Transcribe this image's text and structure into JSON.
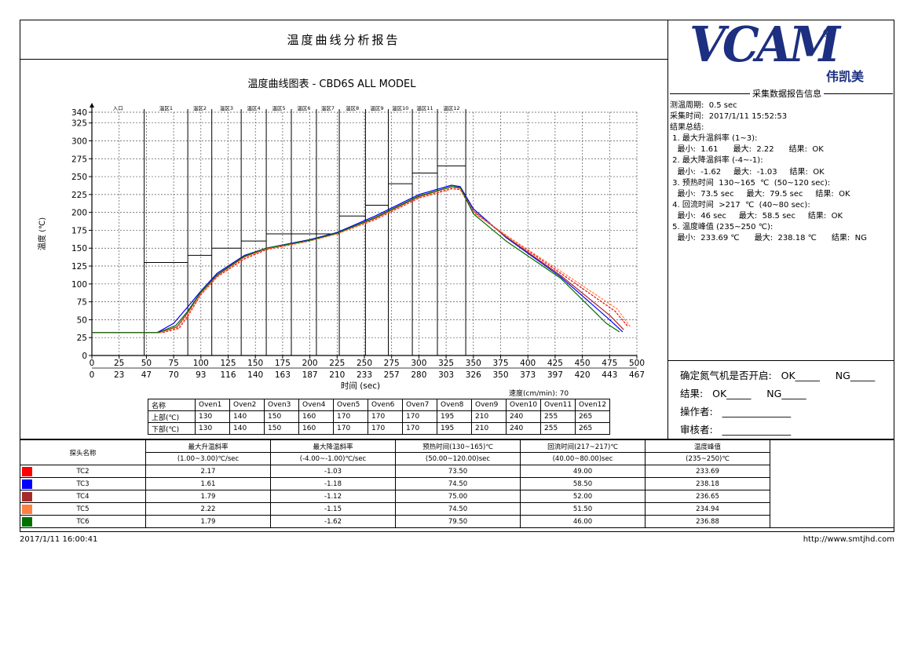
{
  "report_title": "温度曲线分析报告",
  "logo": {
    "text": "VCAM",
    "registered": "®",
    "cn": "伟凯美",
    "color": "#1c2f80"
  },
  "info_header": "采集数据报告信息",
  "info_lines": [
    "测温周期:  0.5 sec",
    "采集时间:  2017/1/11 15:52:53",
    "结果总结:",
    " 1. 最大升温斜率 (1~3):",
    "   最小:  1.61      最大:  2.22      结果:  OK",
    " 2. 最大降温斜率 (-4~-1):",
    "   最小:  -1.62     最大:  -1.03     结果:  OK",
    " 3. 预热时间  130~165  ℃  (50~120 sec):",
    "   最小:  73.5 sec     最大:  79.5 sec     结果:  OK",
    " 4. 回流时间  >217  ℃  (40~80 sec):",
    "   最小:  46 sec     最大:  58.5 sec     结果:  OK",
    " 5. 温度峰值 (235~250 ℃):",
    "   最小:  233.69 ℃      最大:  238.18 ℃      结果:  NG"
  ],
  "confirm": {
    "nitrogen": "确定氮气机是否开启:   OK_____     NG_____",
    "result": "结果:   OK_____     NG_____",
    "operator": "操作者:   ______________",
    "reviewer": "审核者:   ______________"
  },
  "chart_data": {
    "type": "line",
    "title": "温度曲线图表  - CBD6S ALL MODEL",
    "ylabel": "温度 (℃)",
    "xlabel": "时间 (sec)",
    "speed_label": "速度(cm/min):  70",
    "xlim": [
      0,
      500
    ],
    "ylim": [
      0,
      340
    ],
    "x_ticks": [
      0,
      25,
      50,
      75,
      100,
      125,
      150,
      175,
      200,
      225,
      250,
      275,
      300,
      325,
      350,
      375,
      400,
      425,
      450,
      475,
      500
    ],
    "x_ticks_secondary": [
      "0",
      "23",
      "47",
      "70",
      "93",
      "116",
      "140",
      "163",
      "187",
      "210",
      "233",
      "257",
      "280",
      "303",
      "326",
      "350",
      "373",
      "397",
      "420",
      "443",
      "467"
    ],
    "y_ticks": [
      0,
      25,
      50,
      75,
      100,
      125,
      150,
      175,
      200,
      225,
      250,
      275,
      300,
      325,
      340
    ],
    "zone_labels": [
      "入口",
      "温区1",
      "温区2",
      "温区3",
      "温区4",
      "温区5",
      "温区6",
      "温区7",
      "温区8",
      "温区9",
      "温区10",
      "温区11",
      "温区12"
    ],
    "zone_bounds": [
      0,
      48,
      88,
      110,
      137,
      160,
      183,
      206,
      227,
      251,
      272,
      294,
      317,
      343
    ],
    "zone_setpoints": [
      130,
      140,
      150,
      160,
      170,
      170,
      170,
      195,
      210,
      240,
      255,
      265
    ],
    "series": [
      {
        "name": "TC2",
        "color": "#ff0000",
        "x": [
          0,
          65,
          80,
          88,
          100,
          115,
          140,
          160,
          200,
          225,
          260,
          300,
          330,
          338,
          350,
          380,
          430,
          480,
          492
        ],
        "y": [
          32,
          32,
          38,
          55,
          85,
          110,
          135,
          148,
          160,
          170,
          190,
          220,
          233,
          232,
          200,
          168,
          115,
          62,
          40
        ]
      },
      {
        "name": "TC3",
        "color": "#0000ff",
        "x": [
          0,
          60,
          75,
          88,
          100,
          115,
          140,
          160,
          200,
          225,
          260,
          300,
          330,
          338,
          350,
          380,
          430,
          475,
          487
        ],
        "y": [
          32,
          32,
          45,
          68,
          90,
          115,
          140,
          150,
          162,
          172,
          195,
          225,
          238,
          236,
          205,
          165,
          110,
          50,
          33
        ]
      },
      {
        "name": "TC4",
        "color": "#a52a2a",
        "x": [
          0,
          62,
          78,
          88,
          100,
          115,
          140,
          160,
          200,
          225,
          260,
          300,
          330,
          338,
          350,
          380,
          430,
          476,
          488
        ],
        "y": [
          32,
          32,
          40,
          60,
          88,
          112,
          138,
          149,
          161,
          171,
          192,
          222,
          236,
          234,
          202,
          166,
          112,
          55,
          36
        ]
      },
      {
        "name": "TC5",
        "color": "#ff8040",
        "x": [
          0,
          63,
          79,
          88,
          100,
          115,
          140,
          160,
          200,
          225,
          260,
          300,
          330,
          338,
          350,
          380,
          430,
          482,
          494
        ],
        "y": [
          32,
          32,
          39,
          58,
          86,
          111,
          137,
          149,
          160,
          170,
          191,
          221,
          234,
          233,
          201,
          168,
          118,
          65,
          40
        ]
      },
      {
        "name": "TC6",
        "color": "#007000",
        "x": [
          0,
          61,
          77,
          88,
          100,
          115,
          140,
          160,
          200,
          225,
          260,
          300,
          330,
          338,
          350,
          380,
          430,
          472,
          484
        ],
        "y": [
          32,
          32,
          42,
          62,
          89,
          113,
          139,
          150,
          161,
          171,
          193,
          223,
          236,
          235,
          198,
          160,
          108,
          45,
          33
        ]
      }
    ]
  },
  "oven_table": {
    "header": [
      "名称",
      "Oven1",
      "Oven2",
      "Oven3",
      "Oven4",
      "Oven5",
      "Oven6",
      "Oven7",
      "Oven8",
      "Oven9",
      "Oven10",
      "Oven11",
      "Oven12"
    ],
    "rows": [
      [
        "上部(℃)",
        "130",
        "140",
        "150",
        "160",
        "170",
        "170",
        "170",
        "195",
        "210",
        "240",
        "255",
        "265"
      ],
      [
        "下部(℃)",
        "130",
        "140",
        "150",
        "160",
        "170",
        "170",
        "170",
        "195",
        "210",
        "240",
        "255",
        "265"
      ]
    ]
  },
  "result_table": {
    "probe_header": "探头名称",
    "columns": [
      {
        "title": "最大升温斜率",
        "range": "(1.00~3.00)℃/sec"
      },
      {
        "title": "最大降温斜率",
        "range": "(-4.00~-1.00)℃/sec"
      },
      {
        "title": "预热时间(130~165)℃",
        "range": "(50.00~120.00)sec"
      },
      {
        "title": "回流时间(217~217)℃",
        "range": "(40.00~80.00)sec"
      },
      {
        "title": "温度峰值",
        "range": "(235~250)℃"
      }
    ],
    "rows": [
      {
        "name": "TC2",
        "color": "#ff0000",
        "values": [
          "2.17",
          "-1.03",
          "73.50",
          "49.00",
          "233.69"
        ]
      },
      {
        "name": "TC3",
        "color": "#0000ff",
        "values": [
          "1.61",
          "-1.18",
          "74.50",
          "58.50",
          "238.18"
        ]
      },
      {
        "name": "TC4",
        "color": "#a52a2a",
        "values": [
          "1.79",
          "-1.12",
          "75.00",
          "52.00",
          "236.65"
        ]
      },
      {
        "name": "TC5",
        "color": "#ff8040",
        "values": [
          "2.22",
          "-1.15",
          "74.50",
          "51.50",
          "234.94"
        ]
      },
      {
        "name": "TC6",
        "color": "#007000",
        "values": [
          "1.79",
          "-1.62",
          "79.50",
          "46.00",
          "236.88"
        ]
      }
    ]
  },
  "footer": {
    "datetime": "2017/1/11 16:00:41",
    "url": "http://www.smtjhd.com"
  }
}
